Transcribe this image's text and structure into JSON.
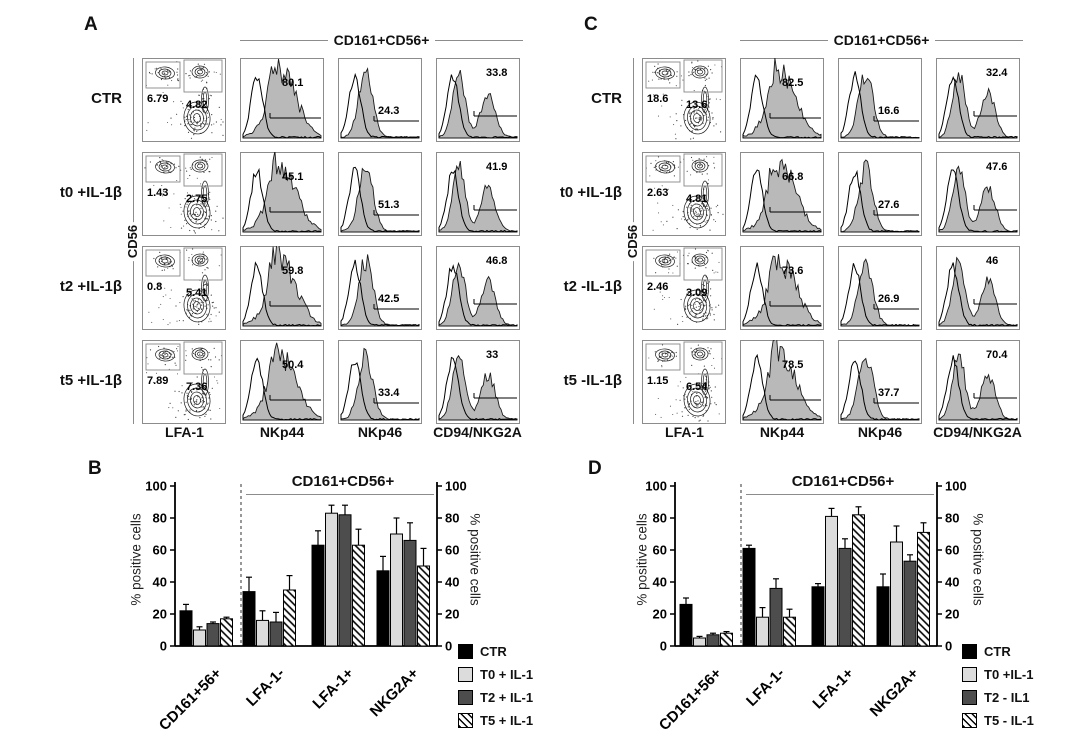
{
  "colors": {
    "bar_black": "#000000",
    "bar_light_gray": "#dcdcdc",
    "bar_dark_gray": "#4d4d4d",
    "histogram_fill": "#b9b9b9",
    "axis_gray": "#8c8c8c"
  },
  "flow_panels": [
    {
      "letter": "A",
      "header": "CD161+CD56+",
      "y_axis_label": "CD56",
      "x_axis_labels": [
        "LFA-1",
        "NKp44",
        "NKp46",
        "CD94/NKG2A"
      ],
      "rows": [
        {
          "label": "CTR",
          "gate_left": "6.79",
          "gate_right": "4.82",
          "hist_values": [
            "80.1",
            "24.3",
            "33.8"
          ]
        },
        {
          "label": "t0 +IL-1β",
          "gate_left": "1.43",
          "gate_right": "2.75",
          "hist_values": [
            "45.1",
            "51.3",
            "41.9"
          ]
        },
        {
          "label": "t2 +IL-1β",
          "gate_left": "0.8",
          "gate_right": "5.41",
          "hist_values": [
            "59.8",
            "42.5",
            "46.8"
          ]
        },
        {
          "label": "t5 +IL-1β",
          "gate_left": "7.89",
          "gate_right": "7.36",
          "hist_values": [
            "50.4",
            "33.4",
            "33"
          ]
        }
      ]
    },
    {
      "letter": "C",
      "header": "CD161+CD56+",
      "y_axis_label": "CD56",
      "x_axis_labels": [
        "LFA-1",
        "NKp44",
        "NKp46",
        "CD94/NKG2A"
      ],
      "rows": [
        {
          "label": "CTR",
          "gate_left": "18.6",
          "gate_right": "13.6",
          "hist_values": [
            "82.5",
            "16.6",
            "32.4"
          ]
        },
        {
          "label": "t0 +IL-1β",
          "gate_left": "2.63",
          "gate_right": "4.81",
          "hist_values": [
            "66.8",
            "27.6",
            "47.6"
          ]
        },
        {
          "label": "t2 -IL-1β",
          "gate_left": "2.46",
          "gate_right": "3.09",
          "hist_values": [
            "73.6",
            "26.9",
            "46"
          ]
        },
        {
          "label": "t5 -IL-1β",
          "gate_left": "1.15",
          "gate_right": "6.54",
          "hist_values": [
            "78.5",
            "37.7",
            "70.4"
          ]
        }
      ]
    }
  ],
  "chart_data": [
    {
      "panel": "B",
      "type": "bar",
      "title": "CD161+CD56+",
      "ylabel_left": "% positive cells",
      "ylabel_right": "% positive cells",
      "ylim": [
        0,
        100
      ],
      "yticks": [
        0,
        20,
        40,
        60,
        80,
        100
      ],
      "categories": [
        "CD161+56+",
        "LFA-1-",
        "LFA-1+",
        "NKG2A+"
      ],
      "separator_after_category": "CD161+56+",
      "bracket_over_categories": [
        "LFA-1-",
        "LFA-1+",
        "NKG2A+"
      ],
      "series": [
        {
          "name": "CTR",
          "fill": "#000000",
          "pattern": "solid",
          "values": [
            22,
            34,
            63,
            47
          ],
          "errors": [
            4,
            9,
            9,
            9
          ]
        },
        {
          "name": "T0 + IL-1",
          "fill": "#dcdcdc",
          "pattern": "solid",
          "values": [
            10,
            16,
            83,
            70
          ],
          "errors": [
            2,
            6,
            5,
            10
          ]
        },
        {
          "name": "T2 + IL-1",
          "fill": "#4d4d4d",
          "pattern": "solid",
          "values": [
            14,
            15,
            82,
            66
          ],
          "errors": [
            1,
            6,
            6,
            11
          ]
        },
        {
          "name": "T5 + IL-1",
          "fill": "#ffffff",
          "pattern": "hatch",
          "values": [
            17,
            35,
            63,
            50
          ],
          "errors": [
            1,
            9,
            10,
            11
          ]
        }
      ]
    },
    {
      "panel": "D",
      "type": "bar",
      "title": "CD161+CD56+",
      "ylabel_left": "% positive cells",
      "ylabel_right": "% positive cells",
      "ylim": [
        0,
        100
      ],
      "yticks": [
        0,
        20,
        40,
        60,
        80,
        100
      ],
      "categories": [
        "CD161+56+",
        "LFA-1-",
        "LFA-1+",
        "NKG2A+"
      ],
      "separator_after_category": "CD161+56+",
      "bracket_over_categories": [
        "LFA-1-",
        "LFA-1+",
        "NKG2A+"
      ],
      "series": [
        {
          "name": "CTR",
          "fill": "#000000",
          "pattern": "solid",
          "values": [
            26,
            61,
            37,
            37
          ],
          "errors": [
            4,
            2,
            2,
            8
          ]
        },
        {
          "name": "T0 +IL-1",
          "fill": "#dcdcdc",
          "pattern": "solid",
          "values": [
            5,
            18,
            81,
            65
          ],
          "errors": [
            1,
            6,
            5,
            10
          ]
        },
        {
          "name": "T2 - IL1",
          "fill": "#4d4d4d",
          "pattern": "solid",
          "values": [
            7,
            36,
            61,
            53
          ],
          "errors": [
            1,
            6,
            6,
            4
          ]
        },
        {
          "name": "T5 - IL-1",
          "fill": "#ffffff",
          "pattern": "hatch",
          "values": [
            8,
            18,
            82,
            71
          ],
          "errors": [
            1,
            5,
            5,
            6
          ]
        }
      ]
    }
  ]
}
